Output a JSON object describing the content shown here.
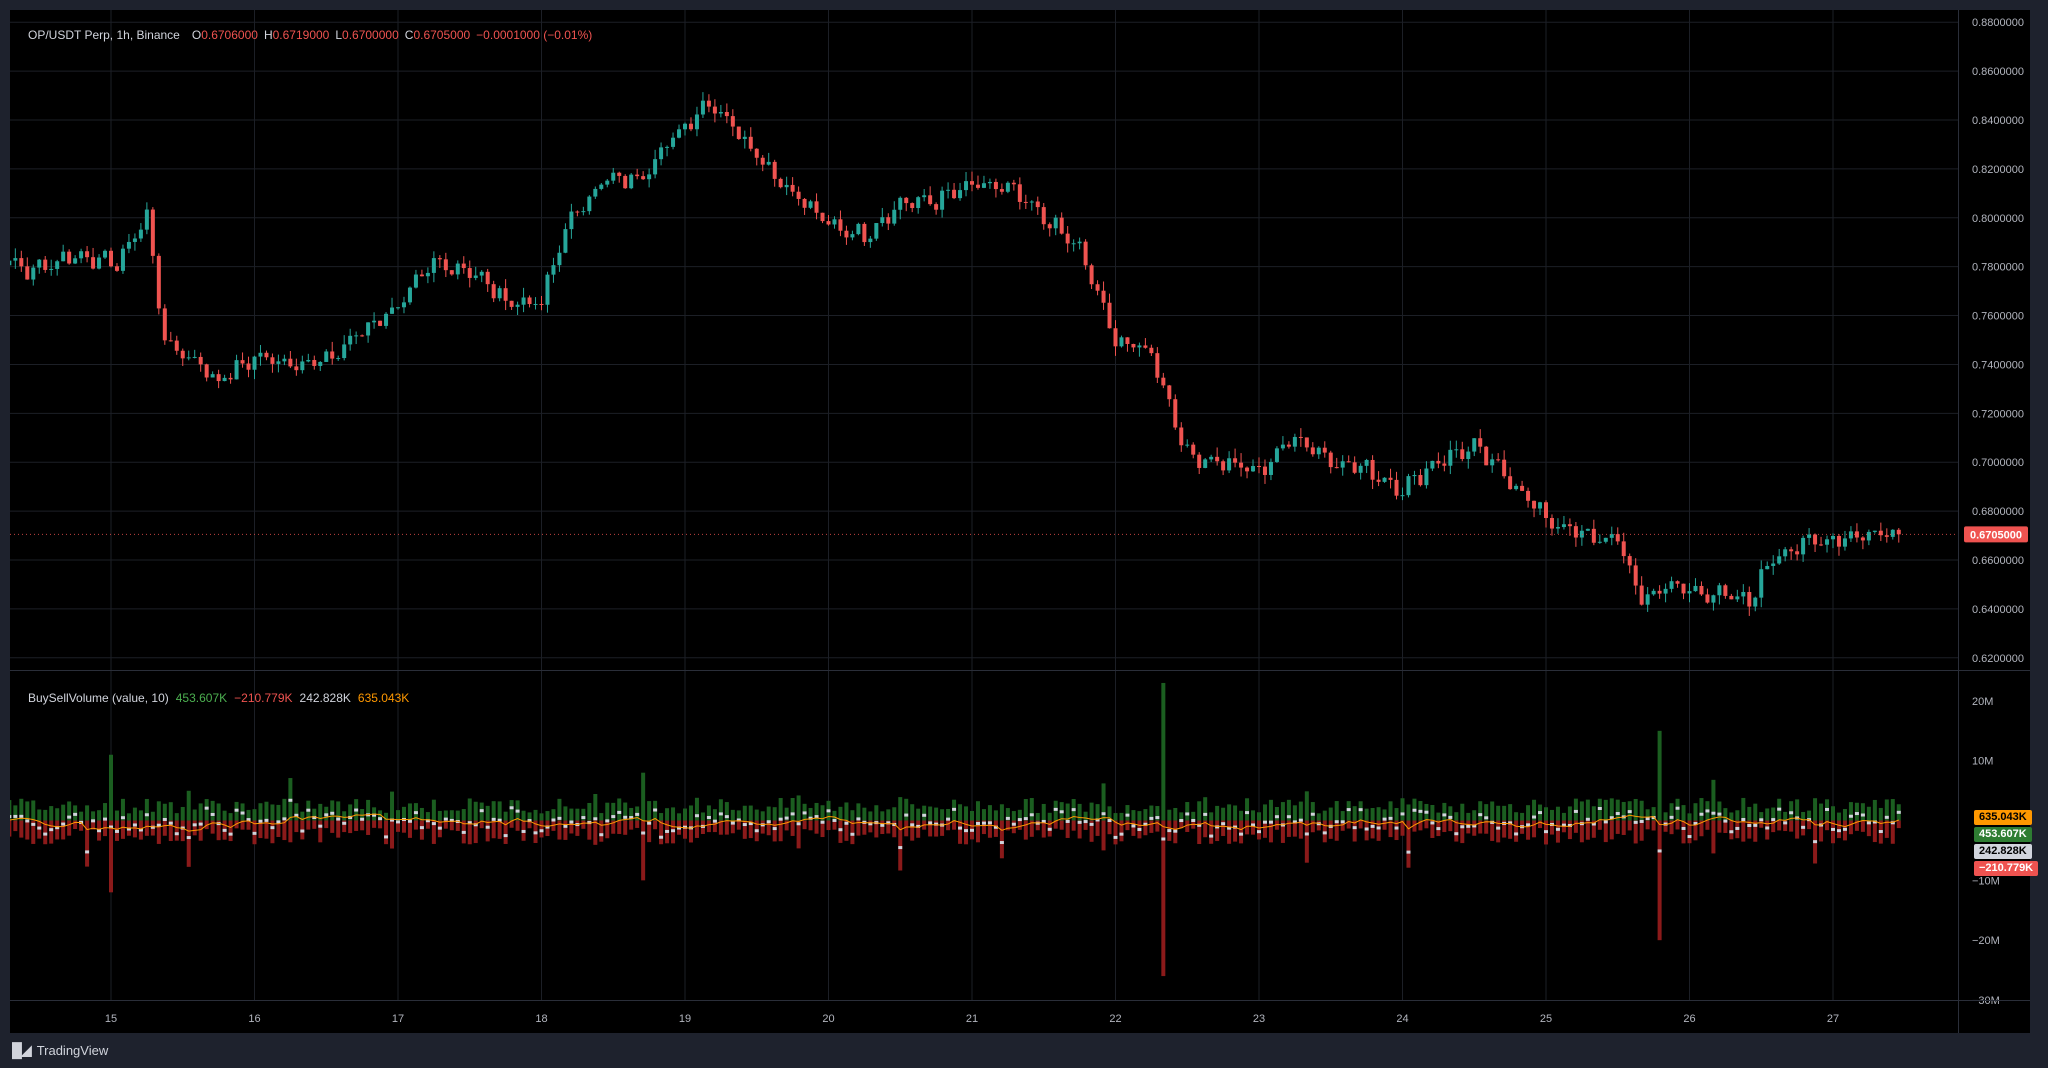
{
  "header": {
    "symbol": "OP/USDT Perp, 1h, Binance",
    "o_label": "O",
    "o_value": "0.6706000",
    "h_label": "H",
    "h_value": "0.6719000",
    "l_label": "L",
    "l_value": "0.6700000",
    "c_label": "C",
    "c_value": "0.6705000",
    "change": "−0.0001000 (−0.01%)"
  },
  "indicator": {
    "name": "BuySellVolume (value, 10)",
    "buy": "453.607K",
    "sell": "−210.779K",
    "delta": "242.828K",
    "ma": "635.043K"
  },
  "price_axis": {
    "ticks": [
      "0.8800000",
      "0.8600000",
      "0.8400000",
      "0.8200000",
      "0.8000000",
      "0.7800000",
      "0.7600000",
      "0.7400000",
      "0.7200000",
      "0.7000000",
      "0.6800000",
      "0.6600000",
      "0.6400000",
      "0.6200000"
    ],
    "last_price": "0.6705000"
  },
  "volume_axis": {
    "ticks": [
      "20M",
      "10M",
      "−10M",
      "−20M",
      "−30M"
    ]
  },
  "badges": {
    "ma": "635.043K",
    "buy": "453.607K",
    "delta": "242.828K",
    "sell": "−210.779K"
  },
  "time_axis": {
    "labels": [
      "15",
      "16",
      "17",
      "18",
      "19",
      "20",
      "21",
      "22",
      "23",
      "24",
      "25",
      "26",
      "27"
    ]
  },
  "branding": {
    "label": "TradingView"
  },
  "colors": {
    "up": "#26a69a",
    "down": "#ef5350",
    "buy_bar": "#1b5e20",
    "sell_bar": "#8b1a1a",
    "ma_line": "#ff9800",
    "delta_mark": "#d1d4dc",
    "grid": "#1c1f26",
    "divider": "#2a2e39"
  },
  "chart_data": {
    "type": "candlestick",
    "interval": "1h",
    "x_range": [
      "14",
      "27"
    ],
    "y_range": [
      0.615,
      0.885
    ],
    "price_anchors": [
      [
        "14 00:00",
        0.806
      ],
      [
        "14 04:00",
        0.787
      ],
      [
        "14 10:00",
        0.778
      ],
      [
        "14 18:00",
        0.785
      ],
      [
        "15 01:00",
        0.781
      ],
      [
        "15 06:00",
        0.801
      ],
      [
        "15 09:00",
        0.749
      ],
      [
        "15 14:00",
        0.742
      ],
      [
        "15 18:00",
        0.733
      ],
      [
        "16 00:00",
        0.743
      ],
      [
        "16 06:00",
        0.741
      ],
      [
        "16 12:00",
        0.741
      ],
      [
        "16 18:00",
        0.754
      ],
      [
        "17 00:00",
        0.764
      ],
      [
        "17 06:00",
        0.781
      ],
      [
        "17 12:00",
        0.779
      ],
      [
        "17 18:00",
        0.766
      ],
      [
        "18 00:00",
        0.765
      ],
      [
        "18 04:00",
        0.796
      ],
      [
        "18 10:00",
        0.815
      ],
      [
        "18 16:00",
        0.816
      ],
      [
        "19 00:00",
        0.838
      ],
      [
        "19 04:00",
        0.848
      ],
      [
        "19 08:00",
        0.838
      ],
      [
        "19 16:00",
        0.815
      ],
      [
        "20 00:00",
        0.797
      ],
      [
        "20 06:00",
        0.793
      ],
      [
        "20 12:00",
        0.806
      ],
      [
        "20 18:00",
        0.807
      ],
      [
        "21 00:00",
        0.813
      ],
      [
        "21 06:00",
        0.812
      ],
      [
        "21 12:00",
        0.8
      ],
      [
        "21 18:00",
        0.787
      ],
      [
        "22 00:00",
        0.75
      ],
      [
        "22 06:00",
        0.745
      ],
      [
        "22 12:00",
        0.703
      ],
      [
        "22 18:00",
        0.7
      ],
      [
        "23 00:00",
        0.696
      ],
      [
        "23 06:00",
        0.711
      ],
      [
        "23 12:00",
        0.701
      ],
      [
        "23 18:00",
        0.697
      ],
      [
        "24 00:00",
        0.689
      ],
      [
        "24 06:00",
        0.701
      ],
      [
        "24 12:00",
        0.706
      ],
      [
        "24 18:00",
        0.693
      ],
      [
        "25 00:00",
        0.677
      ],
      [
        "25 06:00",
        0.67
      ],
      [
        "25 12:00",
        0.668
      ],
      [
        "25 16:00",
        0.644
      ],
      [
        "25 20:00",
        0.649
      ],
      [
        "26 00:00",
        0.648
      ],
      [
        "26 06:00",
        0.645
      ],
      [
        "26 10:00",
        0.643
      ],
      [
        "26 14:00",
        0.662
      ],
      [
        "26 20:00",
        0.667
      ],
      [
        "27 03:00",
        0.67
      ],
      [
        "27 08:00",
        0.671
      ],
      [
        "27 11:00",
        0.6705
      ]
    ],
    "buy_sell_volume": {
      "unit": "value",
      "y_range": [
        -30000000,
        25000000
      ],
      "spikes": [
        {
          "t": "22 08:00",
          "buy": 23000000,
          "sell": -26000000
        },
        {
          "t": "25 19:00",
          "buy": 15000000,
          "sell": -20000000
        },
        {
          "t": "18 17:00",
          "buy": 8000000,
          "sell": -10000000
        },
        {
          "t": "15 00:00",
          "buy": 11000000,
          "sell": -12000000
        }
      ],
      "last": {
        "buy": 453607,
        "sell": -210779,
        "delta": 242828,
        "ma": 635043
      }
    }
  }
}
